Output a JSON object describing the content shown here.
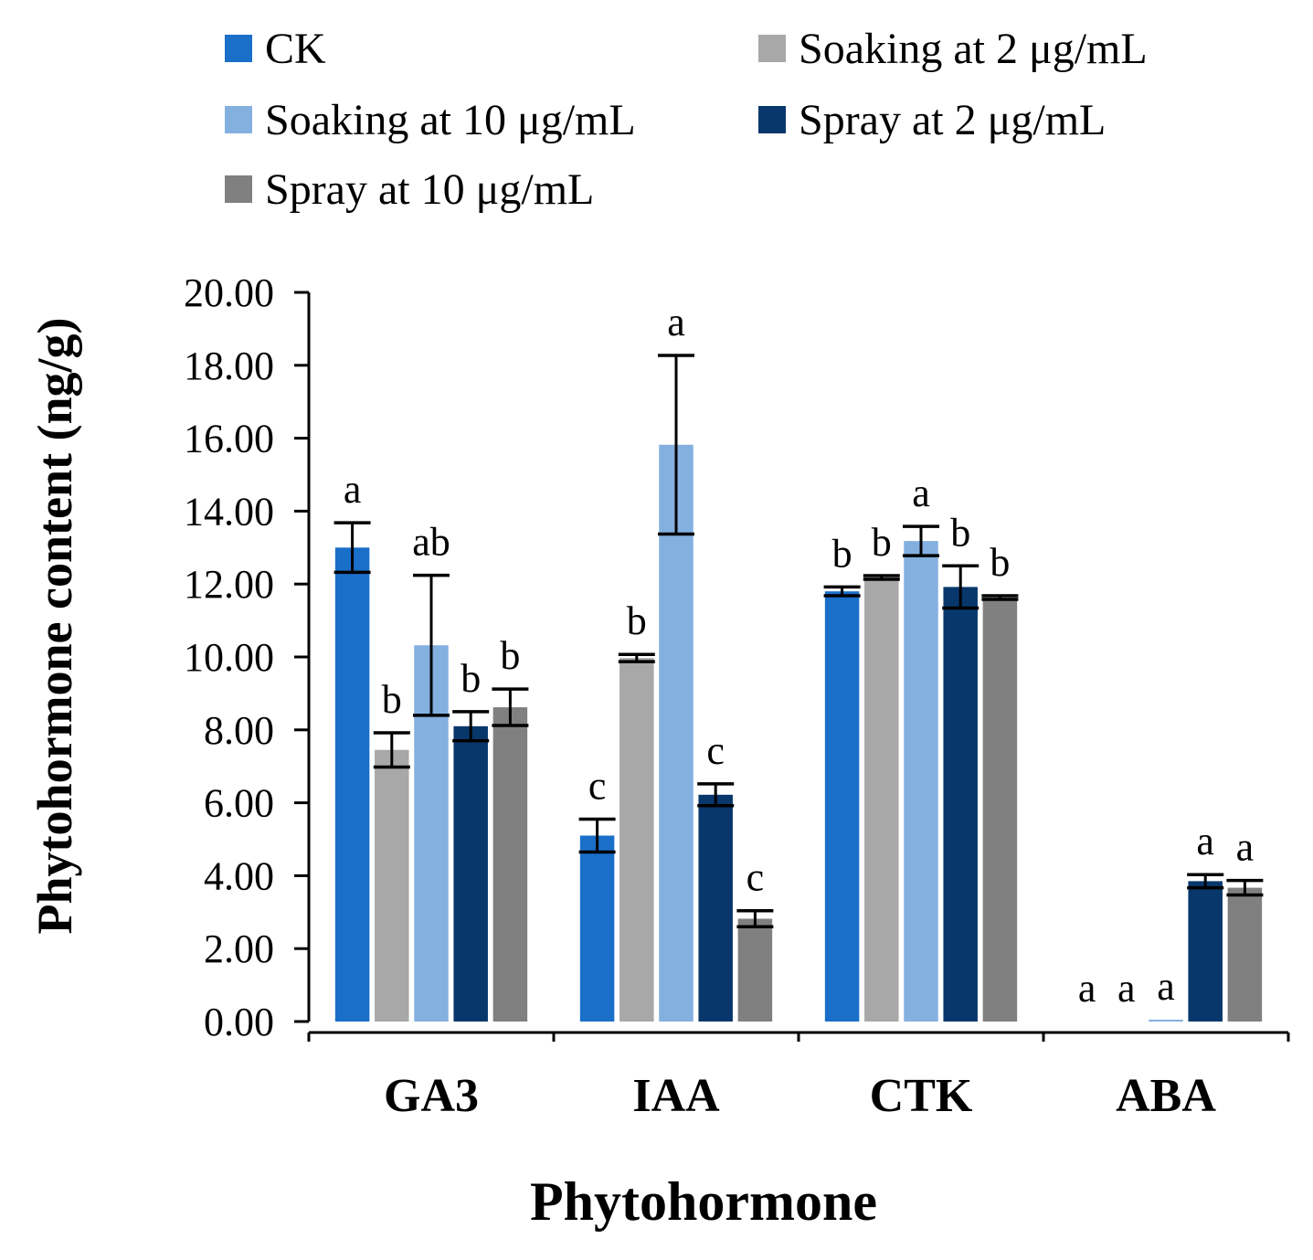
{
  "chart_data": {
    "type": "bar",
    "title": "",
    "xlabel": "Phytohormone",
    "ylabel": "Phytohormone content (ng/g)",
    "ylim": [
      0,
      20
    ],
    "ytick_step": 2,
    "ytick_labels": [
      "0.00",
      "2.00",
      "4.00",
      "6.00",
      "8.00",
      "10.00",
      "12.00",
      "14.00",
      "16.00",
      "18.00",
      "20.00"
    ],
    "grid": false,
    "legend_position": "top",
    "categories": [
      "GA3",
      "IAA",
      "CTK",
      "ABA"
    ],
    "series": [
      {
        "name": "CK",
        "color": "#1a6fc9",
        "values": [
          13.0,
          5.1,
          11.8,
          0.0
        ],
        "errors": [
          0.68,
          0.45,
          0.12,
          0.0
        ],
        "letters": [
          "a",
          "c",
          "b",
          "a"
        ]
      },
      {
        "name": "Soaking at 2 μg/mL",
        "color": "#a8a8a8",
        "values": [
          7.45,
          9.97,
          12.18,
          0.0
        ],
        "errors": [
          0.47,
          0.1,
          0.05,
          0.0
        ],
        "letters": [
          "b",
          "b",
          "b",
          "a"
        ]
      },
      {
        "name": "Soaking at 10 μg/mL",
        "color": "#84b0e0",
        "values": [
          10.32,
          15.82,
          13.18,
          0.05
        ],
        "errors": [
          1.92,
          2.45,
          0.4,
          0.0
        ],
        "letters": [
          "ab",
          "a",
          "a",
          "a"
        ]
      },
      {
        "name": "Spray at 2 μg/mL",
        "color": "#08376b",
        "values": [
          8.1,
          6.22,
          11.92,
          3.85
        ],
        "errors": [
          0.4,
          0.3,
          0.58,
          0.18
        ],
        "letters": [
          "b",
          "c",
          "b",
          "a"
        ]
      },
      {
        "name": "Spray at 10 μg/mL",
        "color": "#808080",
        "values": [
          8.62,
          2.82,
          11.63,
          3.67
        ],
        "errors": [
          0.5,
          0.22,
          0.05,
          0.2
        ],
        "letters": [
          "b",
          "c",
          "b",
          "a"
        ]
      }
    ]
  }
}
